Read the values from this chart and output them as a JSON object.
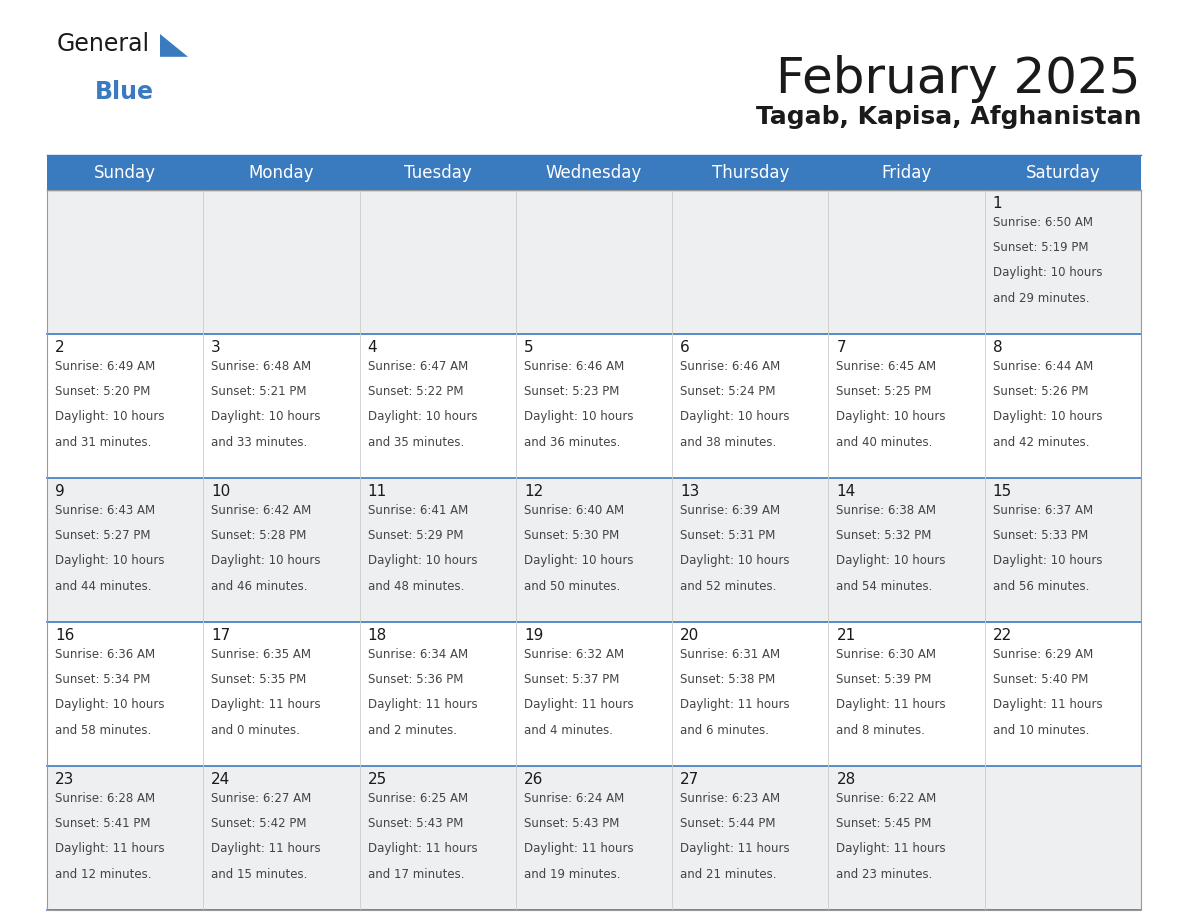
{
  "title": "February 2025",
  "subtitle": "Tagab, Kapisa, Afghanistan",
  "header_color": "#3a7abf",
  "header_text_color": "#ffffff",
  "cell_bg_row0": "#eeeff0",
  "cell_bg_row1": "#ffffff",
  "day_headers": [
    "Sunday",
    "Monday",
    "Tuesday",
    "Wednesday",
    "Thursday",
    "Friday",
    "Saturday"
  ],
  "days": [
    {
      "day": 1,
      "col": 6,
      "row": 0,
      "sunrise": "6:50 AM",
      "sunset": "5:19 PM",
      "daylight": "10 hours and 29 minutes."
    },
    {
      "day": 2,
      "col": 0,
      "row": 1,
      "sunrise": "6:49 AM",
      "sunset": "5:20 PM",
      "daylight": "10 hours and 31 minutes."
    },
    {
      "day": 3,
      "col": 1,
      "row": 1,
      "sunrise": "6:48 AM",
      "sunset": "5:21 PM",
      "daylight": "10 hours and 33 minutes."
    },
    {
      "day": 4,
      "col": 2,
      "row": 1,
      "sunrise": "6:47 AM",
      "sunset": "5:22 PM",
      "daylight": "10 hours and 35 minutes."
    },
    {
      "day": 5,
      "col": 3,
      "row": 1,
      "sunrise": "6:46 AM",
      "sunset": "5:23 PM",
      "daylight": "10 hours and 36 minutes."
    },
    {
      "day": 6,
      "col": 4,
      "row": 1,
      "sunrise": "6:46 AM",
      "sunset": "5:24 PM",
      "daylight": "10 hours and 38 minutes."
    },
    {
      "day": 7,
      "col": 5,
      "row": 1,
      "sunrise": "6:45 AM",
      "sunset": "5:25 PM",
      "daylight": "10 hours and 40 minutes."
    },
    {
      "day": 8,
      "col": 6,
      "row": 1,
      "sunrise": "6:44 AM",
      "sunset": "5:26 PM",
      "daylight": "10 hours and 42 minutes."
    },
    {
      "day": 9,
      "col": 0,
      "row": 2,
      "sunrise": "6:43 AM",
      "sunset": "5:27 PM",
      "daylight": "10 hours and 44 minutes."
    },
    {
      "day": 10,
      "col": 1,
      "row": 2,
      "sunrise": "6:42 AM",
      "sunset": "5:28 PM",
      "daylight": "10 hours and 46 minutes."
    },
    {
      "day": 11,
      "col": 2,
      "row": 2,
      "sunrise": "6:41 AM",
      "sunset": "5:29 PM",
      "daylight": "10 hours and 48 minutes."
    },
    {
      "day": 12,
      "col": 3,
      "row": 2,
      "sunrise": "6:40 AM",
      "sunset": "5:30 PM",
      "daylight": "10 hours and 50 minutes."
    },
    {
      "day": 13,
      "col": 4,
      "row": 2,
      "sunrise": "6:39 AM",
      "sunset": "5:31 PM",
      "daylight": "10 hours and 52 minutes."
    },
    {
      "day": 14,
      "col": 5,
      "row": 2,
      "sunrise": "6:38 AM",
      "sunset": "5:32 PM",
      "daylight": "10 hours and 54 minutes."
    },
    {
      "day": 15,
      "col": 6,
      "row": 2,
      "sunrise": "6:37 AM",
      "sunset": "5:33 PM",
      "daylight": "10 hours and 56 minutes."
    },
    {
      "day": 16,
      "col": 0,
      "row": 3,
      "sunrise": "6:36 AM",
      "sunset": "5:34 PM",
      "daylight": "10 hours and 58 minutes."
    },
    {
      "day": 17,
      "col": 1,
      "row": 3,
      "sunrise": "6:35 AM",
      "sunset": "5:35 PM",
      "daylight": "11 hours and 0 minutes."
    },
    {
      "day": 18,
      "col": 2,
      "row": 3,
      "sunrise": "6:34 AM",
      "sunset": "5:36 PM",
      "daylight": "11 hours and 2 minutes."
    },
    {
      "day": 19,
      "col": 3,
      "row": 3,
      "sunrise": "6:32 AM",
      "sunset": "5:37 PM",
      "daylight": "11 hours and 4 minutes."
    },
    {
      "day": 20,
      "col": 4,
      "row": 3,
      "sunrise": "6:31 AM",
      "sunset": "5:38 PM",
      "daylight": "11 hours and 6 minutes."
    },
    {
      "day": 21,
      "col": 5,
      "row": 3,
      "sunrise": "6:30 AM",
      "sunset": "5:39 PM",
      "daylight": "11 hours and 8 minutes."
    },
    {
      "day": 22,
      "col": 6,
      "row": 3,
      "sunrise": "6:29 AM",
      "sunset": "5:40 PM",
      "daylight": "11 hours and 10 minutes."
    },
    {
      "day": 23,
      "col": 0,
      "row": 4,
      "sunrise": "6:28 AM",
      "sunset": "5:41 PM",
      "daylight": "11 hours and 12 minutes."
    },
    {
      "day": 24,
      "col": 1,
      "row": 4,
      "sunrise": "6:27 AM",
      "sunset": "5:42 PM",
      "daylight": "11 hours and 15 minutes."
    },
    {
      "day": 25,
      "col": 2,
      "row": 4,
      "sunrise": "6:25 AM",
      "sunset": "5:43 PM",
      "daylight": "11 hours and 17 minutes."
    },
    {
      "day": 26,
      "col": 3,
      "row": 4,
      "sunrise": "6:24 AM",
      "sunset": "5:43 PM",
      "daylight": "11 hours and 19 minutes."
    },
    {
      "day": 27,
      "col": 4,
      "row": 4,
      "sunrise": "6:23 AM",
      "sunset": "5:44 PM",
      "daylight": "11 hours and 21 minutes."
    },
    {
      "day": 28,
      "col": 5,
      "row": 4,
      "sunrise": "6:22 AM",
      "sunset": "5:45 PM",
      "daylight": "11 hours and 23 minutes."
    }
  ],
  "num_rows": 5,
  "num_cols": 7,
  "title_fontsize": 36,
  "subtitle_fontsize": 18,
  "dow_fontsize": 12,
  "day_num_fontsize": 11,
  "cell_text_fontsize": 8.5
}
